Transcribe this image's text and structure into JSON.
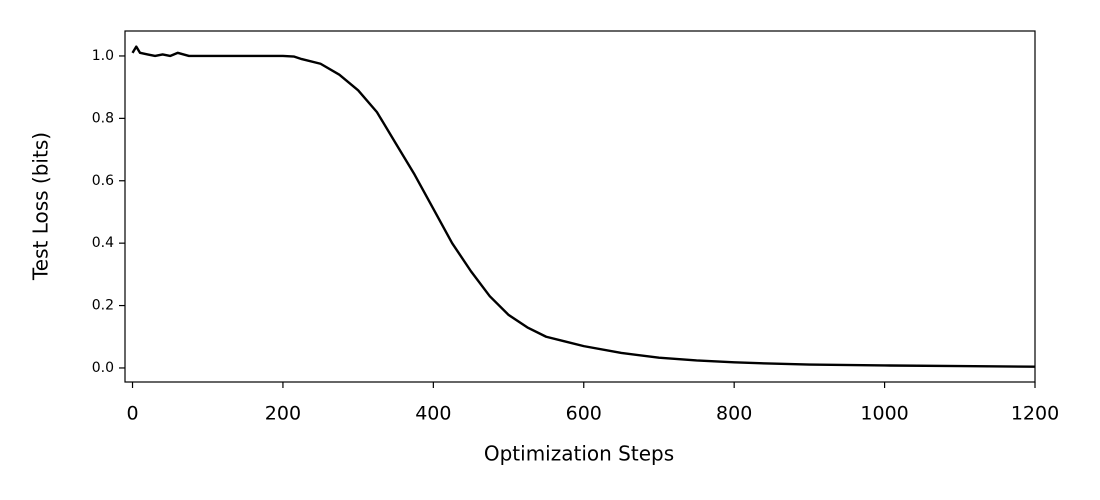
{
  "chart_data": {
    "type": "line",
    "xlabel": "Optimization Steps",
    "ylabel": "Test Loss (bits)",
    "x": [
      0,
      5,
      10,
      20,
      30,
      40,
      50,
      60,
      75,
      100,
      125,
      150,
      175,
      200,
      215,
      225,
      250,
      275,
      300,
      325,
      350,
      375,
      400,
      425,
      450,
      475,
      500,
      525,
      550,
      575,
      600,
      650,
      700,
      750,
      800,
      850,
      900,
      1000,
      1100,
      1200
    ],
    "series": [
      {
        "name": "Test Loss",
        "color": "#000000",
        "values": [
          1.01,
          1.03,
          1.01,
          1.005,
          1.0,
          1.005,
          1.0,
          1.01,
          1.0,
          1.0,
          1.0,
          1.0,
          1.0,
          1.0,
          0.998,
          0.99,
          0.975,
          0.94,
          0.89,
          0.82,
          0.72,
          0.62,
          0.51,
          0.4,
          0.31,
          0.23,
          0.17,
          0.13,
          0.1,
          0.085,
          0.07,
          0.048,
          0.033,
          0.024,
          0.018,
          0.014,
          0.011,
          0.008,
          0.006,
          0.004
        ]
      }
    ],
    "xlim": [
      -10,
      1200
    ],
    "ylim": [
      -0.045,
      1.08
    ],
    "xticks": [
      0,
      200,
      400,
      600,
      800,
      1000,
      1200
    ],
    "yticks": [
      {
        "value": 0,
        "label": "0.0"
      },
      0.2,
      0.4,
      0.6,
      0.8,
      {
        "value": 1,
        "label": "1.0"
      }
    ],
    "grid": false
  }
}
